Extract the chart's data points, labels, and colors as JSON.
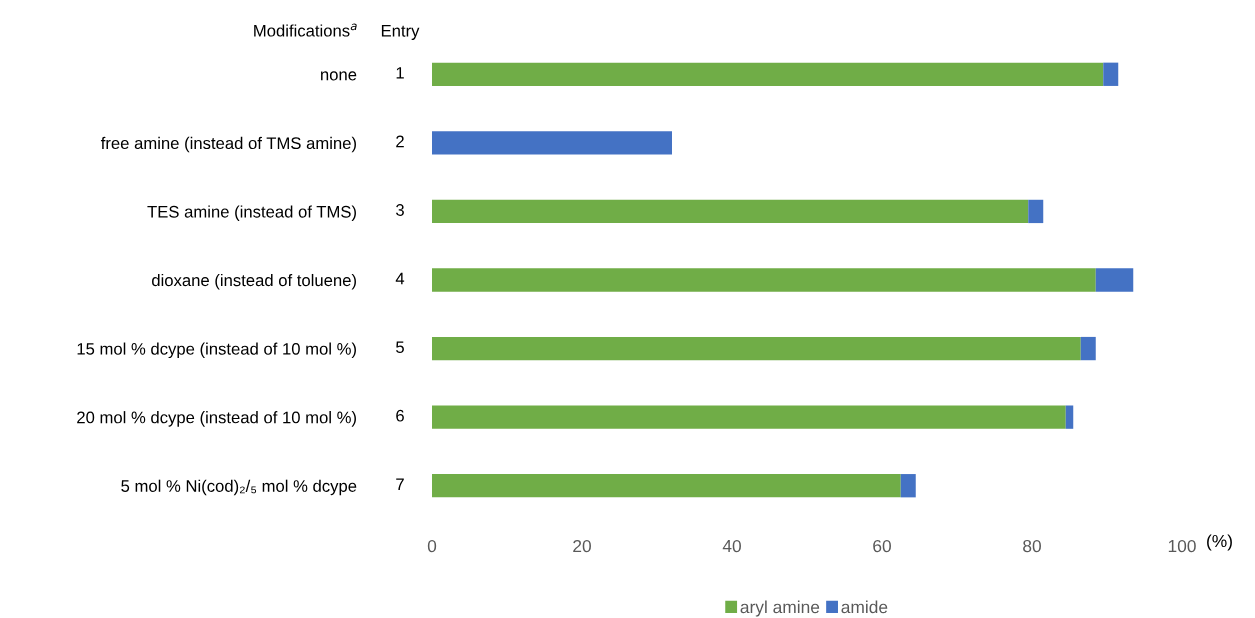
{
  "chart_data": {
    "type": "bar",
    "orientation": "horizontal",
    "stacked": true,
    "ylabel": "Modifications$^{a}$",
    "xlabel": "(%)",
    "categories": [
      "none",
      "free amine (instead of TMS amine)",
      "TES amine (instead of TMS)",
      "dioxane (instead of toluene)",
      "15 mol % dcype (instead of 10 mol %)",
      "20 mol % dcype (instead of 10 mol %)",
      "5 mol % Ni(cod)₂/₅ mol % dcype"
    ],
    "series": [
      {
        "name": "aryl amine",
        "color": "#70ad47",
        "values": [
          89.5,
          0,
          79.5,
          88.5,
          86.5,
          84.5,
          62.5
        ]
      },
      {
        "name": "amide",
        "color": "#4472c4",
        "values": [
          2,
          32,
          2,
          5,
          2,
          1,
          2
        ]
      }
    ],
    "annotations": [
      "Entry",
      "1",
      "2",
      "3",
      "4",
      "5",
      "6",
      "7"
    ],
    "xlim": [
      0,
      100
    ],
    "xticks": [
      0,
      20,
      40,
      60,
      80,
      100
    ],
    "legend": "bottom",
    "grid": false
  }
}
